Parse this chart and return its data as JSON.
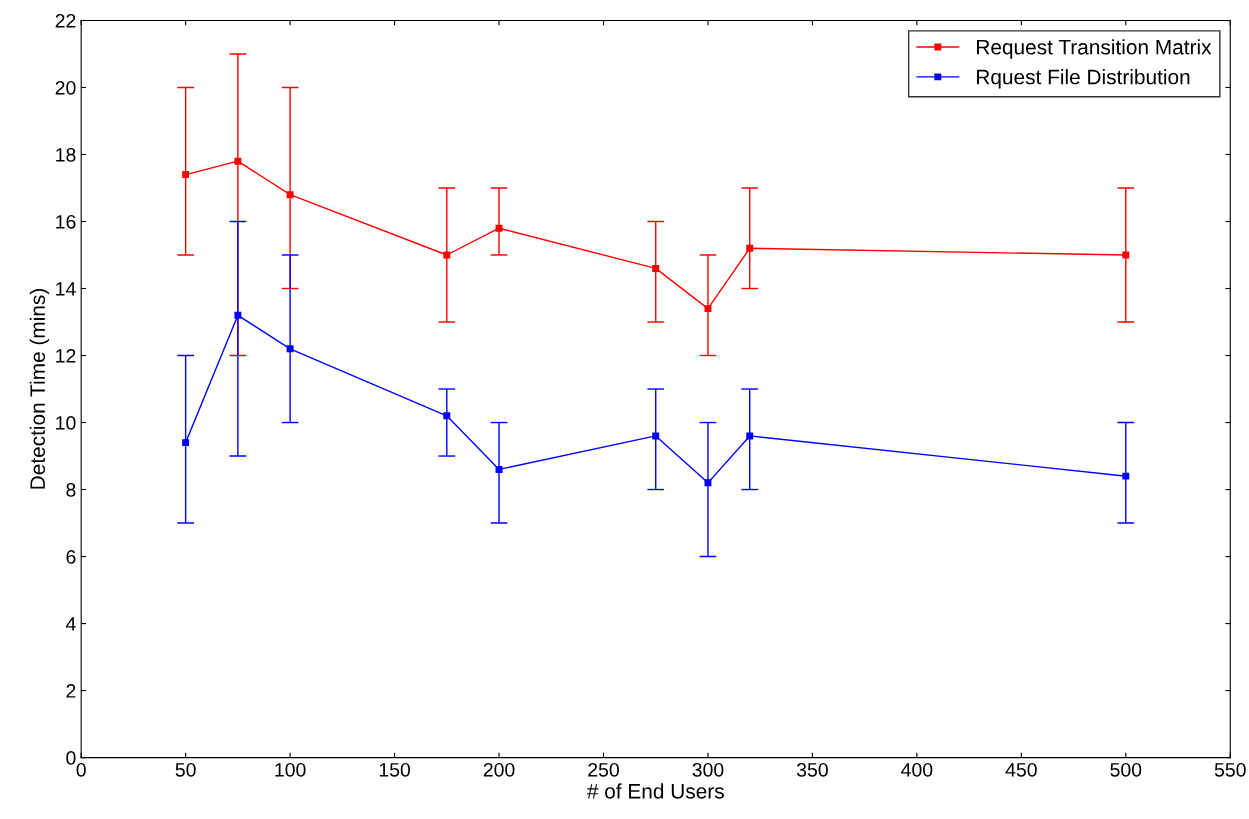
{
  "chart_data": {
    "type": "line",
    "xlabel": "# of End Users",
    "ylabel": "Detection Time (mins)",
    "x": [
      50,
      75,
      100,
      175,
      200,
      275,
      300,
      320,
      500
    ],
    "series": [
      {
        "name": "Request Transition Matrix",
        "color": "#ff0000",
        "values": [
          17.4,
          17.8,
          16.8,
          15,
          15.8,
          14.6,
          13.4,
          15.2,
          15
        ],
        "errors": [
          [
            15,
            20
          ],
          [
            12,
            21
          ],
          [
            14,
            20
          ],
          [
            13,
            17
          ],
          [
            15,
            17
          ],
          [
            13,
            16
          ],
          [
            12,
            15
          ],
          [
            14,
            17
          ],
          [
            13,
            17
          ]
        ]
      },
      {
        "name": "Rquest File Distribution",
        "color": "#0000ff",
        "values": [
          9.4,
          13.2,
          12.2,
          10.2,
          8.6,
          9.6,
          8.2,
          9.6,
          8.4
        ],
        "errors": [
          [
            7,
            12
          ],
          [
            9,
            16
          ],
          [
            10,
            15
          ],
          [
            9,
            11
          ],
          [
            7,
            10
          ],
          [
            8,
            11
          ],
          [
            6,
            10
          ],
          [
            8,
            11
          ],
          [
            7,
            10
          ]
        ]
      }
    ],
    "xlim": [
      0,
      550
    ],
    "xticks": [
      0,
      50,
      100,
      150,
      200,
      250,
      300,
      350,
      400,
      450,
      500,
      550
    ],
    "ylim": [
      0,
      22
    ],
    "yticks": [
      0,
      2,
      4,
      6,
      8,
      10,
      12,
      14,
      16,
      18,
      20,
      22
    ],
    "legend": "top right",
    "marker": "square",
    "line_style": "solid",
    "grid": false
  }
}
